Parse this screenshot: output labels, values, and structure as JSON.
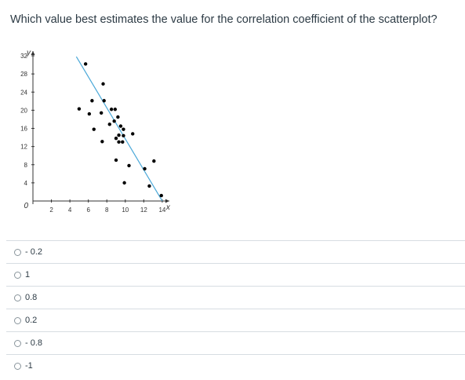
{
  "question": "Which value best estimates the value for the correlation coefficient of the scatterplot?",
  "chart_data": {
    "type": "scatter",
    "x_label": "x",
    "y_label": "y",
    "xlim": [
      0,
      14
    ],
    "ylim": [
      0,
      32
    ],
    "x_ticks": [
      "2",
      "4",
      "6",
      "8",
      "10",
      "12",
      "14"
    ],
    "y_ticks": [
      "4",
      "8",
      "12",
      "16",
      "20",
      "24",
      "28",
      "32"
    ],
    "origin_label": "0",
    "points": [
      {
        "x": 5.7,
        "y": 30.2
      },
      {
        "x": 7.6,
        "y": 25.8
      },
      {
        "x": 6.4,
        "y": 22.1
      },
      {
        "x": 7.7,
        "y": 22.1
      },
      {
        "x": 8.5,
        "y": 20.2
      },
      {
        "x": 8.9,
        "y": 20.2
      },
      {
        "x": 7.4,
        "y": 19.4
      },
      {
        "x": 5.0,
        "y": 20.3
      },
      {
        "x": 6.1,
        "y": 19.2
      },
      {
        "x": 9.2,
        "y": 18.5
      },
      {
        "x": 8.8,
        "y": 17.6
      },
      {
        "x": 9.5,
        "y": 16.5
      },
      {
        "x": 8.3,
        "y": 16.9
      },
      {
        "x": 6.6,
        "y": 15.8
      },
      {
        "x": 9.8,
        "y": 15.8
      },
      {
        "x": 9.3,
        "y": 14.5
      },
      {
        "x": 9.8,
        "y": 14.4
      },
      {
        "x": 10.8,
        "y": 14.8
      },
      {
        "x": 9.0,
        "y": 13.8
      },
      {
        "x": 9.3,
        "y": 13.0
      },
      {
        "x": 9.7,
        "y": 13.0
      },
      {
        "x": 7.5,
        "y": 13.1
      },
      {
        "x": 9.0,
        "y": 9.0
      },
      {
        "x": 10.4,
        "y": 7.8
      },
      {
        "x": 12.1,
        "y": 7.1
      },
      {
        "x": 13.1,
        "y": 8.8
      },
      {
        "x": 9.9,
        "y": 4.0
      },
      {
        "x": 12.6,
        "y": 3.3
      },
      {
        "x": 13.9,
        "y": 1.2
      }
    ],
    "trend_line": {
      "from": {
        "x": 4.7,
        "y": 31.8
      },
      "to": {
        "x": 14.0,
        "y": 0
      },
      "color": "#4aa8d8"
    },
    "point_color": "#000000"
  },
  "options": [
    {
      "label": "- 0.2"
    },
    {
      "label": "1"
    },
    {
      "label": "0.8"
    },
    {
      "label": "0.2"
    },
    {
      "label": "- 0.8"
    },
    {
      "label": "-1"
    }
  ]
}
